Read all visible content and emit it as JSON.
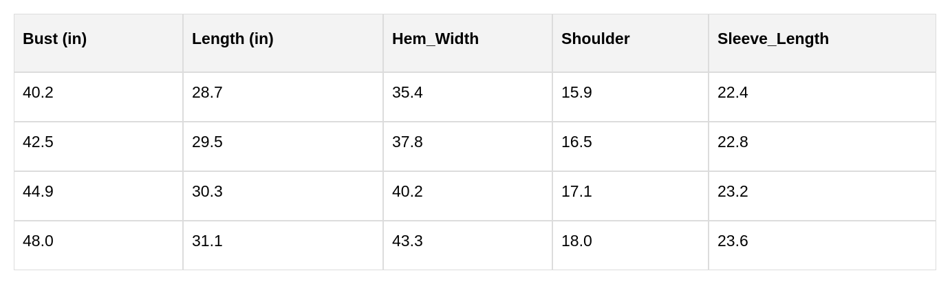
{
  "table": {
    "headers": [
      "Bust (in)",
      "Length (in)",
      "Hem_Width",
      "Shoulder",
      "Sleeve_Length"
    ],
    "rows": [
      [
        "40.2",
        "28.7",
        "35.4",
        "15.9",
        "22.4"
      ],
      [
        "42.5",
        "29.5",
        "37.8",
        "16.5",
        "22.8"
      ],
      [
        "44.9",
        "30.3",
        "40.2",
        "17.1",
        "23.2"
      ],
      [
        "48.0",
        "31.1",
        "43.3",
        "18.0",
        "23.6"
      ]
    ]
  }
}
